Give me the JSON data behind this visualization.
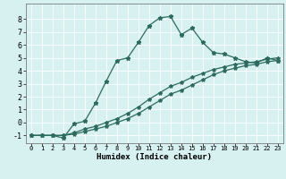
{
  "title": "",
  "xlabel": "Humidex (Indice chaleur)",
  "background_color": "#d7f0f0",
  "grid_color": "#ffffff",
  "line_color": "#2d6b5e",
  "xlim": [
    -0.5,
    23.5
  ],
  "ylim": [
    -1.6,
    9.2
  ],
  "xticks": [
    0,
    1,
    2,
    3,
    4,
    5,
    6,
    7,
    8,
    9,
    10,
    11,
    12,
    13,
    14,
    15,
    16,
    17,
    18,
    19,
    20,
    21,
    22,
    23
  ],
  "yticks": [
    -1,
    0,
    1,
    2,
    3,
    4,
    5,
    6,
    7,
    8
  ],
  "curve1_x": [
    0,
    1,
    2,
    3,
    4,
    5,
    6,
    7,
    8,
    9,
    10,
    11,
    12,
    13,
    14,
    15,
    16,
    17,
    18,
    19,
    20,
    21,
    22,
    23
  ],
  "curve1_y": [
    -1,
    -1,
    -1,
    -1.2,
    -0.1,
    0.1,
    1.5,
    3.2,
    4.8,
    5.0,
    6.2,
    7.5,
    8.1,
    8.2,
    6.8,
    7.3,
    6.2,
    5.4,
    5.3,
    5.0,
    4.7,
    4.6,
    5.0,
    4.8
  ],
  "curve2_x": [
    0,
    1,
    2,
    3,
    4,
    5,
    6,
    7,
    8,
    9,
    10,
    11,
    12,
    13,
    14,
    15,
    16,
    17,
    18,
    19,
    20,
    21,
    22,
    23
  ],
  "curve2_y": [
    -1,
    -1,
    -1,
    -1,
    -0.8,
    -0.5,
    -0.3,
    0.0,
    0.3,
    0.7,
    1.2,
    1.8,
    2.3,
    2.8,
    3.1,
    3.5,
    3.8,
    4.1,
    4.3,
    4.5,
    4.6,
    4.7,
    4.9,
    5.0
  ],
  "curve3_x": [
    0,
    1,
    2,
    3,
    4,
    5,
    6,
    7,
    8,
    9,
    10,
    11,
    12,
    13,
    14,
    15,
    16,
    17,
    18,
    19,
    20,
    21,
    22,
    23
  ],
  "curve3_y": [
    -1,
    -1,
    -1,
    -1,
    -0.9,
    -0.7,
    -0.5,
    -0.3,
    0.0,
    0.3,
    0.7,
    1.2,
    1.7,
    2.2,
    2.5,
    2.9,
    3.3,
    3.7,
    4.0,
    4.2,
    4.4,
    4.5,
    4.7,
    4.8
  ]
}
